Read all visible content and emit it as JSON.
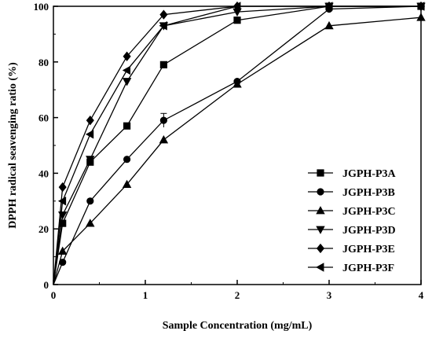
{
  "chart_data": {
    "type": "line",
    "xlabel": "Sample Concentration (mg/mL)",
    "ylabel": "DPPH radical seavenging ratio (%)",
    "xlim": [
      0,
      4
    ],
    "ylim": [
      0,
      100
    ],
    "xticks": [
      "0",
      "1",
      "2",
      "3",
      "4"
    ],
    "yticks": [
      "0",
      "20",
      "40",
      "60",
      "80",
      "100"
    ],
    "grid": false,
    "legend_position": "bottom-right",
    "colors": {
      "line": "#000000",
      "axis": "#000000"
    },
    "x": [
      0,
      0.1,
      0.4,
      0.8,
      1.2,
      2,
      3,
      4
    ],
    "series": [
      {
        "name": "JGPH-P3A",
        "marker": "square",
        "values": [
          0,
          22,
          44,
          57,
          79,
          95,
          100,
          100
        ]
      },
      {
        "name": "JGPH-P3B",
        "marker": "circle",
        "values": [
          0,
          8,
          30,
          45,
          59,
          73,
          99,
          100
        ]
      },
      {
        "name": "JGPH-P3C",
        "marker": "triangle-up",
        "values": [
          0,
          12,
          22,
          36,
          52,
          72,
          93,
          96
        ]
      },
      {
        "name": "JGPH-P3D",
        "marker": "triangle-down",
        "values": [
          0,
          25,
          45,
          73,
          93,
          98,
          100,
          100
        ]
      },
      {
        "name": "JGPH-P3E",
        "marker": "diamond",
        "values": [
          0,
          35,
          59,
          82,
          97,
          100,
          100,
          100
        ]
      },
      {
        "name": "JGPH-P3F",
        "marker": "triangle-left",
        "values": [
          0,
          30,
          54,
          77,
          93,
          100,
          100,
          100
        ]
      }
    ]
  }
}
